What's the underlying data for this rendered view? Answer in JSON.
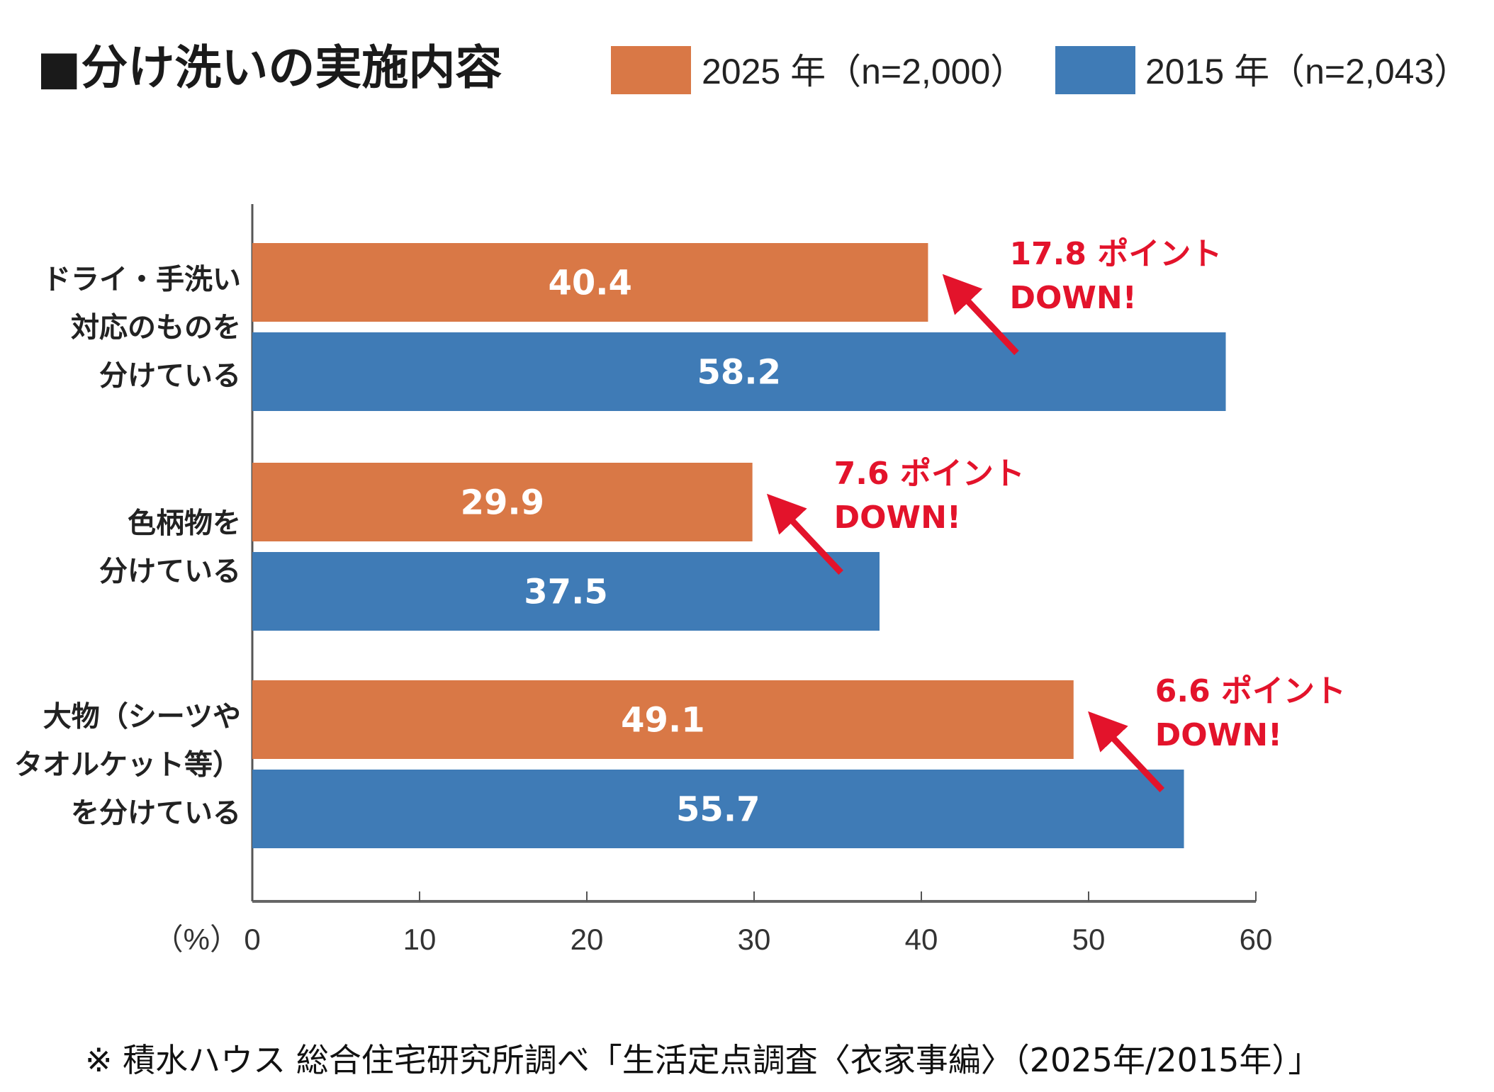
{
  "chart_data": {
    "type": "bar",
    "orientation": "horizontal",
    "title": "■分け洗いの実施内容",
    "categories": [
      [
        "ドライ・手洗い",
        "対応のものを",
        "分けている"
      ],
      [
        "色柄物を",
        "分けている"
      ],
      [
        "大物（シーツや",
        "タオルケット等）",
        "を分けている"
      ]
    ],
    "series": [
      {
        "name": "2025 年（n=2,000）",
        "color": "#d97846",
        "values": [
          40.4,
          29.9,
          49.1
        ]
      },
      {
        "name": "2015 年（n=2,043）",
        "color": "#3f7bb6",
        "values": [
          58.2,
          37.5,
          55.7
        ]
      }
    ],
    "xlabel": "（%）",
    "xlim": [
      0,
      60
    ],
    "xticks": [
      0,
      10,
      20,
      30,
      40,
      50,
      60
    ],
    "grid": false,
    "legend_position": "top",
    "annotations": [
      {
        "line1": "17.8 ポイント",
        "line2": "DOWN!"
      },
      {
        "line1": "7.6 ポイント",
        "line2": "DOWN!"
      },
      {
        "line1": "6.6 ポイント",
        "line2": "DOWN!"
      }
    ],
    "annotation_color": "#e3132b"
  },
  "footnote": "※ 積水ハウス 総合住宅研究所調べ「生活定点調査〈衣家事編〉（2025年/2015年）」"
}
